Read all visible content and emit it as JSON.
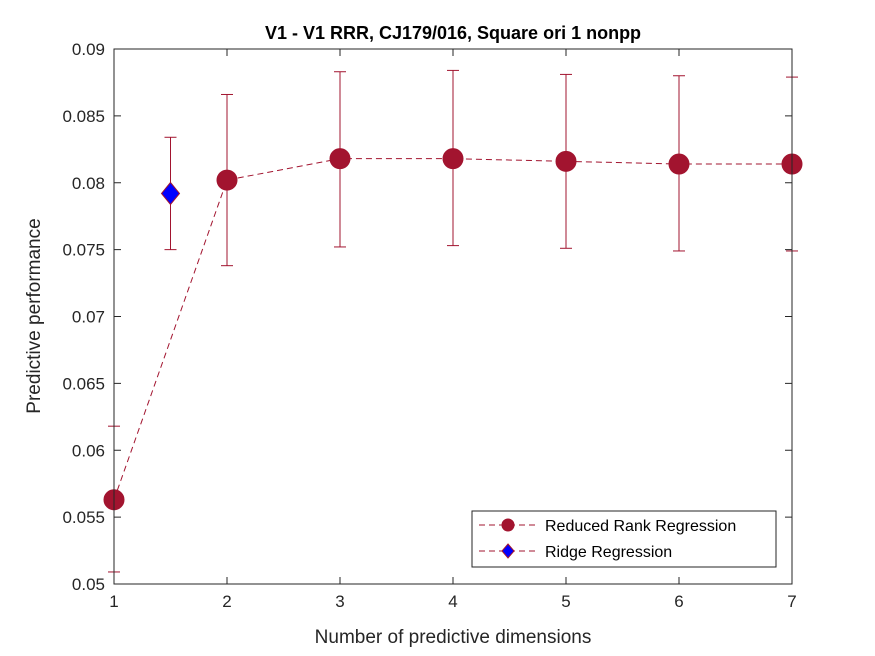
{
  "chart_data": {
    "type": "scatter",
    "title": "V1 - V1 RRR, CJ179/016, Square ori 1 nonpp",
    "xlabel": "Number of predictive dimensions",
    "ylabel": "Predictive performance",
    "xlim": [
      1,
      7
    ],
    "ylim": [
      0.05,
      0.09
    ],
    "xticks": [
      1,
      2,
      3,
      4,
      5,
      6,
      7
    ],
    "xtick_labels": [
      "1",
      "2",
      "3",
      "4",
      "5",
      "6",
      "7"
    ],
    "yticks": [
      0.05,
      0.055,
      0.06,
      0.065,
      0.07,
      0.075,
      0.08,
      0.085,
      0.09
    ],
    "ytick_labels": [
      "0.05",
      "0.055",
      "0.06",
      "0.065",
      "0.07",
      "0.075",
      "0.08",
      "0.085",
      "0.09"
    ],
    "grid": false,
    "legend_position": "bottom-right",
    "series": [
      {
        "name": "Reduced Rank Regression",
        "marker": "circle",
        "line": "dashed",
        "color": "#A2142F",
        "x": [
          1,
          2,
          3,
          4,
          5,
          6,
          7
        ],
        "y": [
          0.0563,
          0.0802,
          0.0818,
          0.0818,
          0.0816,
          0.0814,
          0.0814
        ],
        "err_low": [
          0.0509,
          0.0738,
          0.0752,
          0.0753,
          0.0751,
          0.0749,
          0.0749
        ],
        "err_high": [
          0.0618,
          0.0866,
          0.0883,
          0.0884,
          0.0881,
          0.088,
          0.0879
        ]
      },
      {
        "name": "Ridge Regression",
        "marker": "diamond",
        "line": "dashed",
        "color": "#0000FF",
        "edge_color": "#A2142F",
        "x": [
          1.5
        ],
        "y": [
          0.0792
        ],
        "err_low": [
          0.075
        ],
        "err_high": [
          0.0834
        ]
      }
    ]
  }
}
